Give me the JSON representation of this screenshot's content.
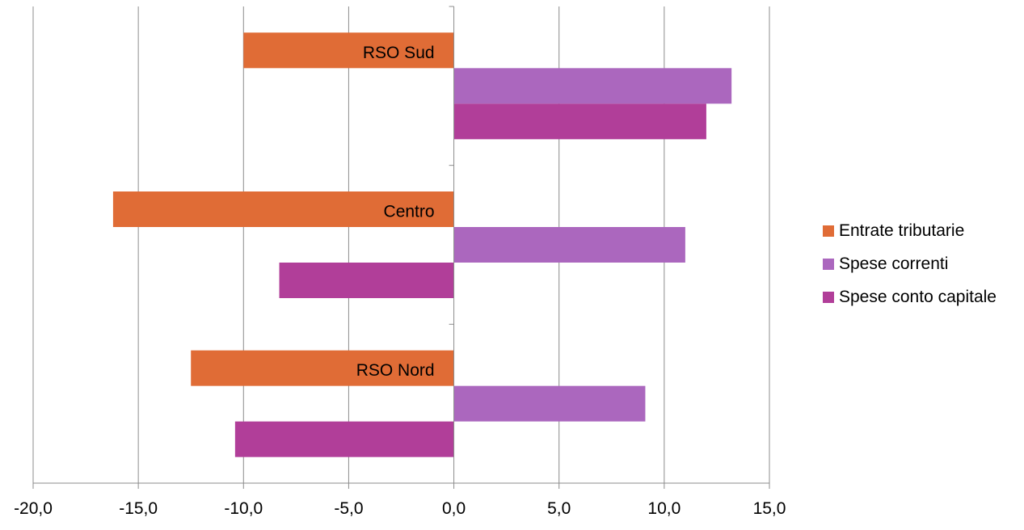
{
  "chart_data": {
    "type": "bar",
    "orientation": "horizontal",
    "title": "",
    "xlabel": "",
    "ylabel": "",
    "xlim": [
      -20,
      15
    ],
    "x_ticks": [
      -20,
      -15,
      -10,
      -5,
      0,
      5,
      10,
      15
    ],
    "x_tick_labels": [
      "-20,0",
      "-15,0",
      "-10,0",
      "-5,0",
      "0,0",
      "5,0",
      "10,0",
      "15,0"
    ],
    "grid": "vertical",
    "legend_position": "right",
    "categories": [
      "RSO Sud",
      "Centro",
      "RSO Nord"
    ],
    "series": [
      {
        "name": "Entrate tributarie",
        "color": "#E06C36",
        "values": [
          -10.0,
          -16.2,
          -12.5
        ]
      },
      {
        "name": "Spese correnti",
        "color": "#AB67BE",
        "values": [
          13.2,
          11.0,
          9.1
        ]
      },
      {
        "name": "Spese conto capitale",
        "color": "#B13E99",
        "values": [
          12.0,
          -8.3,
          -10.4
        ]
      }
    ]
  }
}
